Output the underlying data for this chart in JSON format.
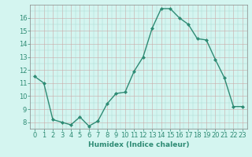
{
  "x": [
    0,
    1,
    2,
    3,
    4,
    5,
    6,
    7,
    8,
    9,
    10,
    11,
    12,
    13,
    14,
    15,
    16,
    17,
    18,
    19,
    20,
    21,
    22,
    23
  ],
  "y": [
    11.5,
    11.0,
    8.2,
    8.0,
    7.8,
    8.4,
    7.7,
    8.1,
    9.4,
    10.2,
    10.3,
    11.9,
    13.0,
    15.2,
    16.7,
    16.7,
    16.0,
    15.5,
    14.4,
    14.3,
    12.8,
    11.4,
    9.2,
    9.2
  ],
  "line_color": "#2e8b74",
  "marker": "D",
  "marker_size": 2.0,
  "bg_color": "#d4f5f0",
  "grid_color": "#b8b8b8",
  "grid_color_minor": "#e8c8c8",
  "xlabel": "Humidex (Indice chaleur)",
  "xlim": [
    -0.5,
    23.5
  ],
  "ylim": [
    7.5,
    17.0
  ],
  "yticks": [
    8,
    9,
    10,
    11,
    12,
    13,
    14,
    15,
    16
  ],
  "xticks": [
    0,
    1,
    2,
    3,
    4,
    5,
    6,
    7,
    8,
    9,
    10,
    11,
    12,
    13,
    14,
    15,
    16,
    17,
    18,
    19,
    20,
    21,
    22,
    23
  ],
  "xlabel_fontsize": 6.5,
  "tick_fontsize": 6.0,
  "line_width": 1.0
}
